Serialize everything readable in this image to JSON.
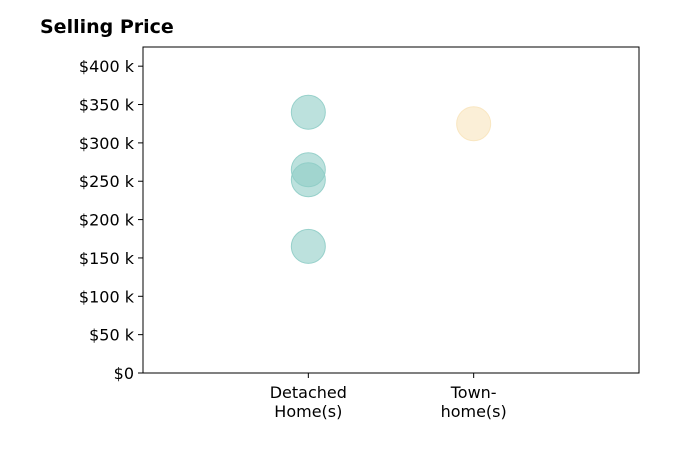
{
  "chart_data": {
    "type": "scatter",
    "title": "Selling Price",
    "xlabel": "",
    "ylabel": "",
    "categories": [
      [
        "Detached",
        "Home(s)"
      ],
      [
        "Town-",
        "home(s)"
      ]
    ],
    "y_ticks": [
      0,
      50000,
      100000,
      150000,
      200000,
      250000,
      300000,
      350000,
      400000
    ],
    "y_tick_labels": [
      "$0",
      "$50 k",
      "$100 k",
      "$150 k",
      "$200 k",
      "$250 k",
      "$300 k",
      "$350 k",
      "$400 k"
    ],
    "ylim": [
      0,
      425000
    ],
    "xlim": [
      0,
      3
    ],
    "grid": false,
    "points": [
      {
        "category": 0,
        "value": 340000,
        "color": "#8fcdc6"
      },
      {
        "category": 0,
        "value": 265000,
        "color": "#8fcdc6"
      },
      {
        "category": 0,
        "value": 252000,
        "color": "#8fcdc6"
      },
      {
        "category": 0,
        "value": 165000,
        "color": "#8fcdc6"
      },
      {
        "category": 1,
        "value": 325000,
        "color": "#f8e4bd"
      }
    ]
  }
}
